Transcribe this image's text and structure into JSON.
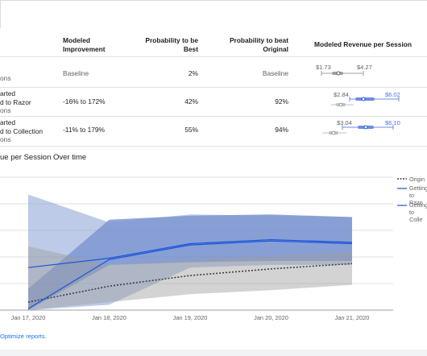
{
  "table": {
    "headers": {
      "improvement": [
        "Modeled",
        "Improvement"
      ],
      "prob_best": [
        "Probability to be",
        "Best"
      ],
      "prob_beat": [
        "Probability to beat",
        "Original"
      ],
      "revenue": "Modeled Revenue per Session"
    },
    "rows": [
      {
        "name_lines": [
          "ons"
        ],
        "improvement": "Baseline",
        "prob_best": "2%",
        "prob_beat": "Baseline",
        "range_low": "$1.73",
        "range_high": "$4.27",
        "range_color": "#5f6368"
      },
      {
        "name_lines": [
          "arted",
          "d to Razor",
          "ons"
        ],
        "improvement": "-16% to 172%",
        "prob_best": "42%",
        "prob_beat": "92%",
        "range_low": "$2.84",
        "range_high": "$6.02",
        "range_color": "#4f6fd8"
      },
      {
        "name_lines": [
          "arted",
          "d to Collection",
          "ons"
        ],
        "improvement": "-11% to 179%",
        "prob_best": "55%",
        "prob_beat": "94%",
        "range_low": "$3.04",
        "range_high": "$6.10",
        "range_color": "#4f6fd8"
      }
    ]
  },
  "chart_title": "ue per Session Over time",
  "chart_data": {
    "type": "area",
    "title": "ue per Session Over time",
    "categories": [
      "Jan 17, 2020",
      "Jan 18, 2020",
      "Jan 19, 2020",
      "Jan 20, 2020",
      "Jan 21, 2020"
    ],
    "series": [
      {
        "name": "Origin",
        "style": "dotted",
        "color": "#3c4043",
        "band_color": "#9e9e9e",
        "line": [
          0.3,
          0.9,
          1.3,
          1.55,
          1.75
        ],
        "band_low": [
          0.0,
          0.3,
          0.6,
          0.75,
          0.95
        ],
        "band_high": [
          2.4,
          1.7,
          1.9,
          2.05,
          2.2
        ]
      },
      {
        "name": "Getting Started Added to Razor",
        "style": "solid",
        "color": "#1a54d8",
        "band_color": "#7b98d1",
        "line": [
          1.6,
          1.95,
          2.5,
          2.65,
          2.55
        ],
        "band_low": [
          0.0,
          0.2,
          1.6,
          1.7,
          1.7
        ],
        "band_high": [
          4.35,
          3.3,
          3.6,
          3.55,
          3.5
        ]
      },
      {
        "name": "Getting Started Added to Collection",
        "style": "solid",
        "color": "#1a54d8",
        "band_color": "#4a6cc0",
        "line": [
          0.05,
          1.9,
          2.45,
          2.6,
          2.5
        ],
        "band_low": [
          0.0,
          1.7,
          1.8,
          1.85,
          1.85
        ],
        "band_high": [
          0.8,
          3.4,
          3.55,
          3.6,
          3.5
        ]
      }
    ],
    "legend": [
      {
        "label_lines": [
          "Origin"
        ],
        "style": "dotted"
      },
      {
        "label_lines": [
          "Getting",
          "to Razo"
        ],
        "style": "solid"
      },
      {
        "label_lines": [
          "Getting",
          "to Colle"
        ],
        "style": "solid"
      }
    ],
    "ylim": [
      0,
      5
    ],
    "grid": true,
    "legend_position": "right"
  },
  "footer_text": "Optimize reports."
}
